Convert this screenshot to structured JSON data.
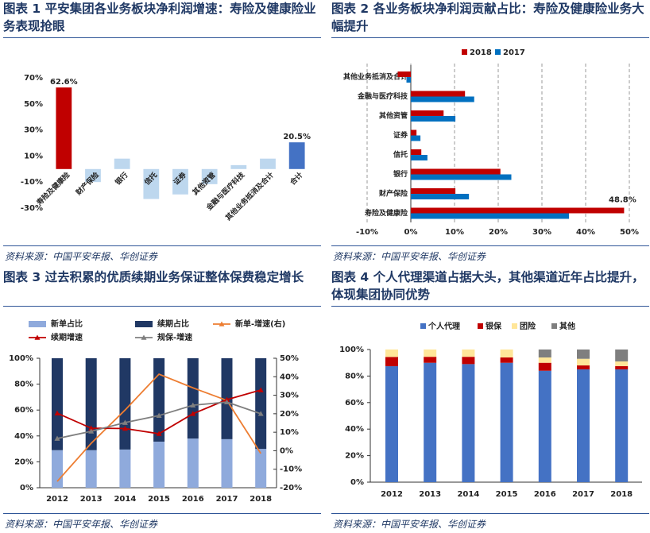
{
  "chart_data": [
    {
      "type": "bar",
      "title": "图表 1 平安集团各业务板块净利润增速：寿险及健康险业务表现抢眼",
      "categories": [
        "寿险及健康险",
        "财产保险",
        "银行",
        "信托",
        "证券",
        "其他资管",
        "金融与医疗科技",
        "其他业务抵消及合计",
        "合计"
      ],
      "values": [
        62.6,
        -10,
        8,
        -23,
        -19.5,
        -11.6,
        3,
        8,
        20.5
      ],
      "value_labels": [
        "62.6%",
        null,
        null,
        null,
        null,
        null,
        null,
        null,
        "20.5%"
      ],
      "value_label_color": "#c00000",
      "colors": [
        "#c00000",
        "#bdd7ee",
        "#bdd7ee",
        "#bdd7ee",
        "#bdd7ee",
        "#bdd7ee",
        "#bdd7ee",
        "#bdd7ee",
        "#4472c4"
      ],
      "ylim": [
        -30,
        70
      ],
      "yticks": [
        {
          "value": -30,
          "label": "-30%"
        },
        {
          "value": -10,
          "label": "-10%"
        },
        {
          "value": 10,
          "label": "10%"
        },
        {
          "value": 30,
          "label": "30%"
        },
        {
          "value": 50,
          "label": "50%"
        },
        {
          "value": 70,
          "label": "70%"
        }
      ],
      "grid": false,
      "source": "资料来源：中国平安年报、华创证券"
    },
    {
      "type": "barh",
      "title": "图表 2 各业务板块净利润贡献占比：寿险及健康险业务大幅提升",
      "categories": [
        "其他业务抵消及合计",
        "金融与医疗科技",
        "其他资管",
        "证券",
        "信托",
        "银行",
        "财产保险",
        "寿险及健康险"
      ],
      "series": [
        {
          "name": "2018",
          "color": "#c00000",
          "values": [
            -3,
            12.4,
            7.5,
            1.3,
            2.4,
            20.5,
            10.2,
            48.8
          ],
          "value_labels": [
            null,
            null,
            null,
            null,
            null,
            null,
            null,
            "48.8%"
          ]
        },
        {
          "name": "2017",
          "color": "#0070c0",
          "values": [
            -1,
            14.5,
            10.2,
            2.2,
            3.8,
            23,
            13.3,
            36.2
          ]
        }
      ],
      "value_label_color": "#c00000",
      "xlim": [
        -10,
        50
      ],
      "xticks": [
        {
          "value": -10,
          "label": "-10%"
        },
        {
          "value": 0,
          "label": "0%"
        },
        {
          "value": 10,
          "label": "10%"
        },
        {
          "value": 20,
          "label": "20%"
        },
        {
          "value": 30,
          "label": "30%"
        },
        {
          "value": 40,
          "label": "40%"
        },
        {
          "value": 50,
          "label": "50%"
        }
      ],
      "grid": true,
      "legend": "top",
      "source": "资料来源：中国平安年报、华创证券"
    },
    {
      "type": "combo",
      "title": "图表 3 过去积累的优质续期业务保证整体保费稳定增长",
      "categories": [
        "2012",
        "2013",
        "2014",
        "2015",
        "2016",
        "2017",
        "2018"
      ],
      "series": [
        {
          "name": "新单占比",
          "kind": "bar",
          "color": "#8faadc",
          "values": [
            29,
            29,
            29.5,
            35.6,
            38,
            37.5,
            30
          ]
        },
        {
          "name": "续期占比",
          "kind": "bar",
          "color": "#203864",
          "values": [
            71,
            71,
            70.5,
            64.4,
            62,
            62.5,
            70
          ]
        },
        {
          "name": "新单-增速(右)",
          "kind": "line",
          "axis": "y2",
          "color": "#ed7d31",
          "marker": "none",
          "values": [
            -16.6,
            4,
            22,
            41.4,
            34,
            27.2,
            -1.5
          ]
        },
        {
          "name": "续期增速",
          "kind": "line",
          "axis": "y2",
          "color": "#c00000",
          "marker": "triangle",
          "values": [
            20.3,
            12.2,
            12,
            9.2,
            20,
            27.6,
            32.8
          ]
        },
        {
          "name": "规保-增速",
          "kind": "line",
          "axis": "y2",
          "color": "#7f7f7f",
          "marker": "triangle",
          "values": [
            6.6,
            10.5,
            15.2,
            19,
            24.6,
            26.3,
            20
          ]
        }
      ],
      "ylim": [
        0,
        100
      ],
      "yticks": [
        {
          "value": 0,
          "label": "0%"
        },
        {
          "value": 20,
          "label": "20%"
        },
        {
          "value": 40,
          "label": "40%"
        },
        {
          "value": 60,
          "label": "60%"
        },
        {
          "value": 80,
          "label": "80%"
        },
        {
          "value": 100,
          "label": "100%"
        }
      ],
      "y2lim": [
        -20,
        50
      ],
      "y2ticks": [
        {
          "value": -20,
          "label": "-20%"
        },
        {
          "value": -10,
          "label": "-10%"
        },
        {
          "value": 0,
          "label": "0%"
        },
        {
          "value": 10,
          "label": "10%"
        },
        {
          "value": 20,
          "label": "20%"
        },
        {
          "value": 30,
          "label": "30%"
        },
        {
          "value": 40,
          "label": "40%"
        },
        {
          "value": 50,
          "label": "50%"
        }
      ],
      "legend": "top",
      "source": "资料来源：中国平安年报、华创证券"
    },
    {
      "type": "stacked_bar",
      "title": "图表 4 个人代理渠道占据大头，其他渠道近年占比提升，体现集团协同优势",
      "categories": [
        "2012",
        "2013",
        "2014",
        "2015",
        "2016",
        "2017",
        "2018"
      ],
      "series": [
        {
          "name": "个人代理",
          "color": "#4472c4",
          "values": [
            87.4,
            90,
            89,
            90,
            84,
            85,
            85
          ]
        },
        {
          "name": "银保",
          "color": "#c00000",
          "values": [
            7,
            4.5,
            5.5,
            4,
            6,
            3,
            2.5
          ]
        },
        {
          "name": "团险",
          "color": "#ffe699",
          "values": [
            5.6,
            5.5,
            5.5,
            6,
            4,
            5,
            3.5
          ]
        },
        {
          "name": "其他",
          "color": "#7f7f7f",
          "values": [
            0,
            0,
            0,
            0,
            6,
            7,
            9
          ]
        }
      ],
      "ylim": [
        0,
        100
      ],
      "yticks": [
        {
          "value": 0,
          "label": "0%"
        },
        {
          "value": 20,
          "label": "20%"
        },
        {
          "value": 40,
          "label": "40%"
        },
        {
          "value": 60,
          "label": "60%"
        },
        {
          "value": 80,
          "label": "80%"
        },
        {
          "value": 100,
          "label": "100%"
        }
      ],
      "legend": "top",
      "source": "资料来源：中国平安年报、华创证券"
    }
  ]
}
